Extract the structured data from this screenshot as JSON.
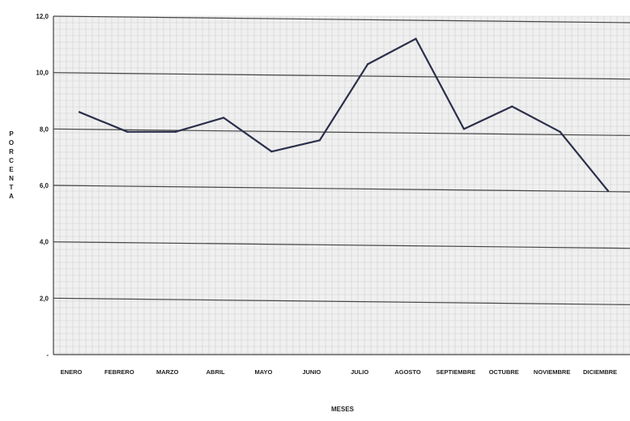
{
  "chart_data": {
    "type": "line",
    "title": "",
    "xlabel": "MESES",
    "ylabel": "PORCENTA",
    "categories": [
      "ENERO",
      "FEBRERO",
      "MARZO",
      "ABRIL",
      "MAYO",
      "JUNIO",
      "JULIO",
      "AGOSTO",
      "SEPTIEMBRE",
      "OCTUBRE",
      "NOVIEMBRE",
      "DICIEMBRE"
    ],
    "series": [
      {
        "values": [
          8.6,
          7.9,
          7.9,
          8.4,
          7.2,
          7.6,
          10.3,
          11.2,
          8.0,
          8.8,
          7.9,
          5.8
        ]
      }
    ],
    "yticks": [
      "-",
      "2,0",
      "4,0",
      "6,0",
      "8,0",
      "10,0",
      "12,0"
    ],
    "ylim": [
      0,
      12
    ],
    "grid": true,
    "colors": {
      "plot_bg": "#f0f0f0",
      "gridline": "#444444",
      "minor_grid": "#cfcfcf",
      "line": "#2b2f4a",
      "text": "#222222"
    }
  }
}
